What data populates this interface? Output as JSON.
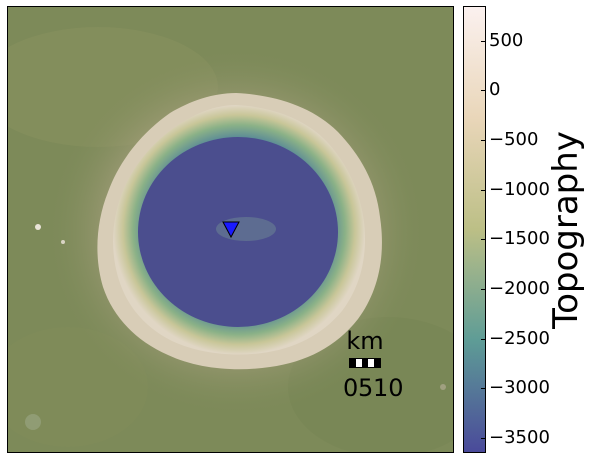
{
  "colorbar": {
    "title": "Topography",
    "ticks": [
      "500",
      "0",
      "−500",
      "−1000",
      "−1500",
      "−2000",
      "−2500",
      "−3000",
      "−3500"
    ],
    "tick_values": [
      500,
      0,
      -500,
      -1000,
      -1500,
      -2000,
      -2500,
      -3000,
      -3500
    ],
    "range": [
      -3650,
      850
    ],
    "colors": [
      "#4a4a9a",
      "#5e9c96",
      "#bcbf86",
      "#e9d6b9",
      "#fbf1ef"
    ]
  },
  "scale_bar": {
    "unit": "km",
    "labels": [
      "0",
      "5",
      "10"
    ]
  },
  "marker": {
    "shape": "triangle-down",
    "color": "#1a1aff"
  },
  "terrain_colors": {
    "plain": "#7d8a59",
    "rim": "#cbbd9f",
    "wall": "#86a97f",
    "floor": "#4c4f8e"
  }
}
